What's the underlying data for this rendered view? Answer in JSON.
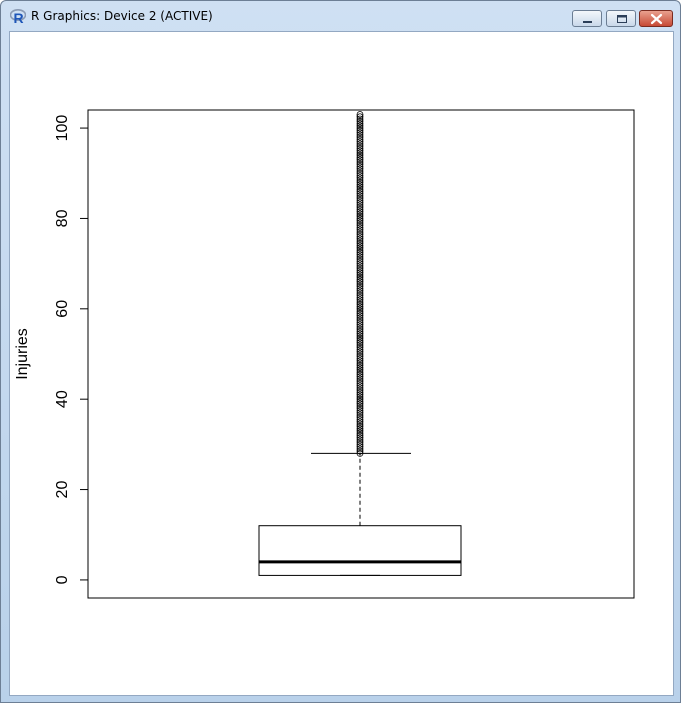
{
  "window": {
    "title": "R Graphics: Device 2 (ACTIVE)",
    "app_icon": "r-logo-icon",
    "controls": [
      "minimize-icon",
      "maximize-icon",
      "close-icon"
    ]
  },
  "chart_data": {
    "type": "boxplot",
    "title": "",
    "xlabel": "",
    "ylabel": "Injuries",
    "ylim": [
      -4,
      104
    ],
    "yticks": [
      0,
      20,
      40,
      60,
      80,
      100
    ],
    "ytick_labels": [
      "0",
      "20",
      "40",
      "60",
      "80",
      "100"
    ],
    "grid": false,
    "box": {
      "min_whisker": 1,
      "q1": 1,
      "median": 4,
      "q3": 12,
      "max_whisker": 28
    },
    "outliers_range": [
      28,
      103
    ],
    "outliers_dense": true,
    "colors": {
      "box": "#000000",
      "background": "#ffffff",
      "titlebar": "#c6dbf1",
      "close_button": "#c74a35"
    }
  }
}
